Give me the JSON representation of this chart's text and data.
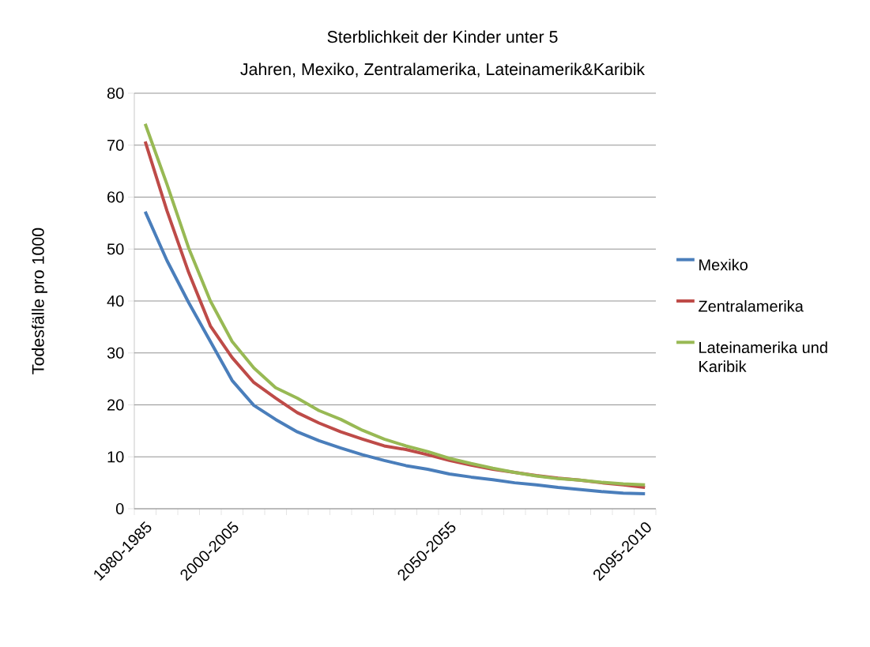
{
  "chart_data": {
    "type": "line",
    "title": "Sterblichkeit der Kinder unter 5",
    "subtitle": "Jahren,   Mexiko, Zentralamerika, Lateinamerik&Karibik",
    "ylabel": "Todesfälle pro 1000",
    "categories": [
      "1980-1985",
      null,
      null,
      null,
      "2000-2005",
      null,
      null,
      null,
      null,
      null,
      null,
      null,
      null,
      null,
      "2050-2055",
      null,
      null,
      null,
      null,
      null,
      null,
      null,
      null,
      "2095-2010"
    ],
    "series": [
      {
        "name": "Mexiko",
        "color": "#4a7ebb",
        "values": [
          57.2,
          47.8,
          39.7,
          32.2,
          24.7,
          19.9,
          17.2,
          14.8,
          13.1,
          11.7,
          10.4,
          9.3,
          8.3,
          7.6,
          6.7,
          6.1,
          5.6,
          5.0,
          4.6,
          4.1,
          3.7,
          3.3,
          3.0,
          2.9
        ]
      },
      {
        "name": "Zentralamerika",
        "color": "#be4b48",
        "values": [
          70.7,
          57.4,
          45.5,
          35.2,
          29.1,
          24.3,
          21.3,
          18.5,
          16.5,
          14.8,
          13.4,
          12.1,
          11.4,
          10.4,
          9.3,
          8.4,
          7.6,
          7.0,
          6.4,
          5.9,
          5.5,
          5.0,
          4.6,
          4.1
        ]
      },
      {
        "name": "Lateinamerika und Karibik",
        "color": "#98b954",
        "values": [
          74.1,
          62.5,
          50.2,
          40.0,
          32.2,
          27.1,
          23.3,
          21.3,
          18.9,
          17.2,
          15.1,
          13.4,
          12.1,
          11.0,
          9.7,
          8.7,
          7.8,
          7.0,
          6.3,
          5.8,
          5.5,
          5.1,
          4.8,
          4.6
        ]
      }
    ],
    "ylim": [
      0,
      80
    ],
    "yticks": [
      0,
      10,
      20,
      30,
      40,
      50,
      60,
      70,
      80
    ],
    "grid": "y",
    "legend": "right",
    "marker": "none",
    "line_style": "solid"
  }
}
